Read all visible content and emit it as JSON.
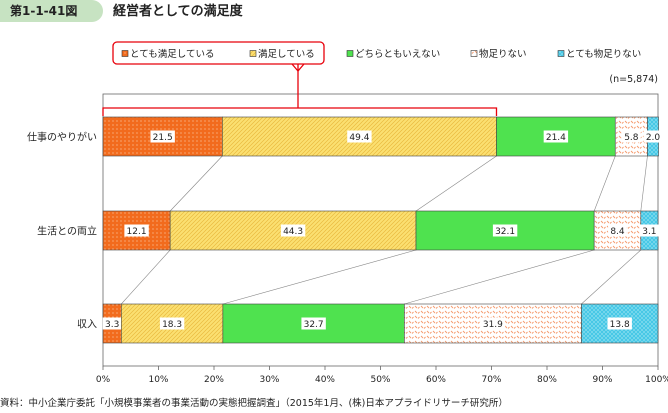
{
  "figure": {
    "number": "第1-1-41図",
    "title": "経営者としての満足度",
    "source": "資料：中小企業庁委託「小規模事業者の事業活動の実態把握調査」（2015年1月、(株)日本アプライドリサーチ研究所）",
    "n_label": "(n=5,874)"
  },
  "colors": {
    "badge_bg": "#c7e3c2",
    "highlight_red": "#e8000b"
  },
  "chart_data": {
    "type": "bar",
    "orientation": "horizontal-stacked-100",
    "categories": [
      "仕事のやりがい",
      "生活との両立",
      "収入"
    ],
    "series": [
      {
        "name": "とても満足している",
        "color": "#f26b1d",
        "pattern": "dots",
        "values": [
          21.5,
          12.1,
          3.3
        ]
      },
      {
        "name": "満足している",
        "color": "#fbe071",
        "pattern": "diagonal",
        "values": [
          49.4,
          44.3,
          18.3
        ]
      },
      {
        "name": "どちらともいえない",
        "color": "#4fe24f",
        "pattern": "solid",
        "values": [
          21.4,
          32.1,
          32.7
        ]
      },
      {
        "name": "物足りない",
        "color": "#f59a6c",
        "pattern": "dashes",
        "values": [
          5.8,
          8.4,
          31.9
        ]
      },
      {
        "name": "とても物足りない",
        "color": "#47c8e6",
        "pattern": "crosshatch",
        "values": [
          2.0,
          3.1,
          13.8
        ]
      }
    ],
    "value_labels": [
      [
        "21.5",
        "49.4",
        "21.4",
        "5.8",
        "2.0"
      ],
      [
        "12.1",
        "44.3",
        "32.1",
        "8.4",
        "3.1"
      ],
      [
        "3.3",
        "18.3",
        "32.7",
        "31.9",
        "13.8"
      ]
    ],
    "x_ticks": [
      "0%",
      "10%",
      "20%",
      "30%",
      "40%",
      "50%",
      "60%",
      "70%",
      "80%",
      "90%",
      "100%"
    ],
    "xlim": [
      0,
      100
    ],
    "legend_position": "top",
    "grid": false,
    "highlight_bracket": "top bar, series 1–2"
  }
}
